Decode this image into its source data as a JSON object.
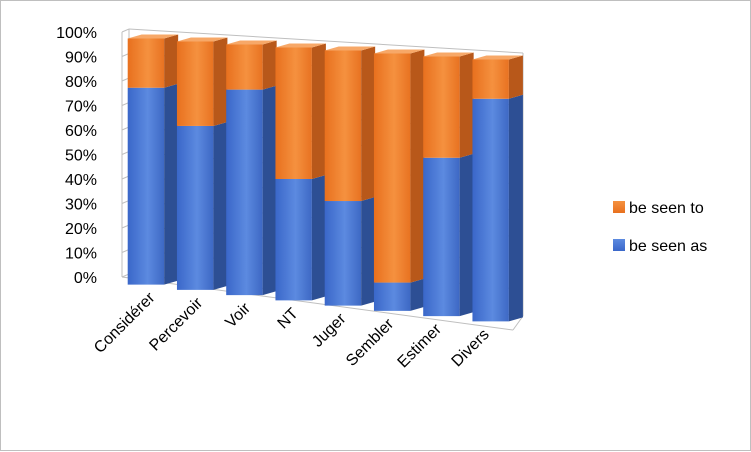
{
  "chart_data": {
    "type": "bar",
    "stacked": true,
    "percent": true,
    "three_d": true,
    "title": "",
    "xlabel": "",
    "ylabel": "",
    "ylim": [
      0,
      100
    ],
    "y_ticks": [
      "0%",
      "10%",
      "20%",
      "30%",
      "40%",
      "50%",
      "60%",
      "70%",
      "80%",
      "90%",
      "100%"
    ],
    "categories": [
      "Considérer",
      "Percevoir",
      "Voir",
      "NT",
      "Juger",
      "Sembler",
      "Estimer",
      "Divers"
    ],
    "series": [
      {
        "name": "be seen as",
        "values": [
          80,
          66,
          82,
          48,
          41,
          11,
          61,
          85
        ],
        "color": "#4472c4"
      },
      {
        "name": "be seen to",
        "values": [
          20,
          34,
          18,
          52,
          59,
          89,
          39,
          15
        ],
        "color": "#ed7d31"
      }
    ],
    "legend": {
      "position": "right",
      "order": [
        "be seen to",
        "be seen as"
      ]
    },
    "grid": true
  }
}
